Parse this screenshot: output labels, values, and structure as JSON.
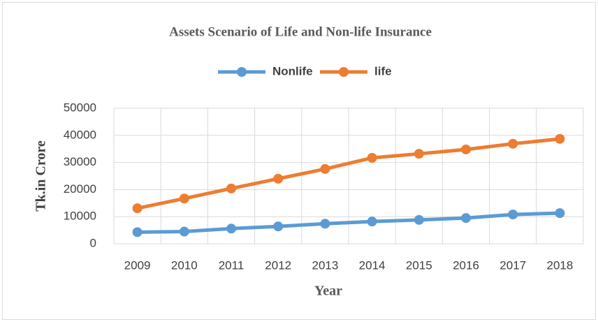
{
  "chart_data": {
    "type": "line",
    "title": "Assets Scenario of Life and Non-life Insurance",
    "x_label": "Year",
    "y_label": "Tk.in Crore",
    "categories": [
      "2009",
      "2010",
      "2011",
      "2012",
      "2013",
      "2014",
      "2015",
      "2016",
      "2017",
      "2018"
    ],
    "series": [
      {
        "name": "Nonlife",
        "color": "#5b9bd5",
        "values": [
          4300,
          4500,
          5600,
          6400,
          7400,
          8200,
          8800,
          9500,
          10800,
          11300
        ]
      },
      {
        "name": "life",
        "color": "#ed7d31",
        "values": [
          13100,
          16700,
          20400,
          24000,
          27600,
          31700,
          33200,
          34800,
          36900,
          38700
        ]
      }
    ],
    "ylim": [
      0,
      50000
    ],
    "yticks": [
      0,
      10000,
      20000,
      30000,
      40000,
      50000
    ],
    "grid": true,
    "legend": "top"
  }
}
